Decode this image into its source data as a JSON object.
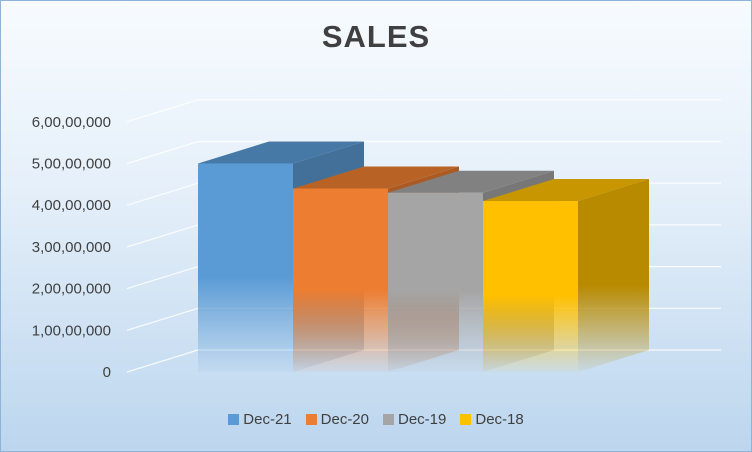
{
  "chart_data": {
    "type": "bar",
    "title": "SALES",
    "categories": [
      "Dec-21",
      "Dec-20",
      "Dec-19",
      "Dec-18"
    ],
    "values": [
      50000000,
      44000000,
      43000000,
      41000000
    ],
    "y_ticks": [
      "0",
      "1,00,00,000",
      "2,00,00,000",
      "3,00,00,000",
      "4,00,00,000",
      "5,00,00,000",
      "6,00,00,000"
    ],
    "ylim": [
      0,
      60000000
    ],
    "legend_position": "bottom",
    "grid": true,
    "style": "3d-column",
    "colors": [
      "#5b9bd5",
      "#ed7d31",
      "#a5a5a5",
      "#ffc000"
    ]
  }
}
